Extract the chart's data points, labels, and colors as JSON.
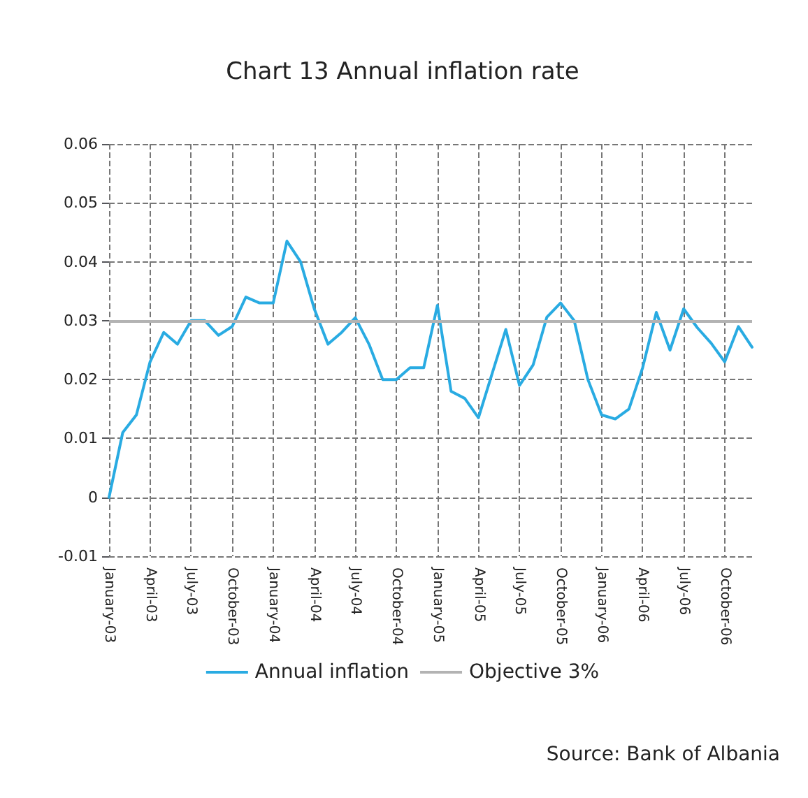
{
  "chart_data": {
    "type": "line",
    "title": "Chart 13 Annual inflation rate",
    "categories": [
      "January-03",
      null,
      null,
      "April-03",
      null,
      null,
      "July-03",
      null,
      null,
      "October-03",
      null,
      null,
      "January-04",
      null,
      null,
      "April-04",
      null,
      null,
      "July-04",
      null,
      null,
      "October-04",
      null,
      null,
      "January-05",
      null,
      null,
      "April-05",
      null,
      null,
      "July-05",
      null,
      null,
      "October-05",
      null,
      null,
      "January-06",
      null,
      null,
      "April-06",
      null,
      null,
      "July-06",
      null,
      null,
      "October-06",
      null,
      null
    ],
    "series": [
      {
        "name": "Annual inflation",
        "color": "#29abe2",
        "values": [
          0,
          0.011,
          0.014,
          0.023,
          0.028,
          0.026,
          0.03,
          0.03,
          0.0275,
          0.029,
          0.034,
          0.033,
          0.033,
          0.0435,
          0.04,
          0.032,
          0.026,
          0.028,
          0.0305,
          0.026,
          0.02,
          0.02,
          0.022,
          0.022,
          0.0326,
          0.018,
          0.0168,
          0.0135,
          0.021,
          0.0285,
          0.019,
          0.0225,
          0.0306,
          0.033,
          0.03,
          0.02,
          0.014,
          0.0133,
          0.015,
          0.022,
          0.0314,
          0.025,
          0.032,
          0.0288,
          0.0262,
          0.023,
          0.029,
          0.0255
        ]
      }
    ],
    "ylim": [
      -0.01,
      0.06
    ],
    "yticks": [
      -0.01,
      0,
      0.01,
      0.02,
      0.03,
      0.04,
      0.05,
      0.06
    ],
    "ref_lines": [
      {
        "axis": "y",
        "value": 0.03,
        "label": "Objective 3%",
        "color": "#b3b3b3"
      }
    ],
    "grid": true,
    "legend": "bottom",
    "marker": "none",
    "line_style": "solid",
    "annotations": [
      "Source: Bank of Albania"
    ]
  }
}
